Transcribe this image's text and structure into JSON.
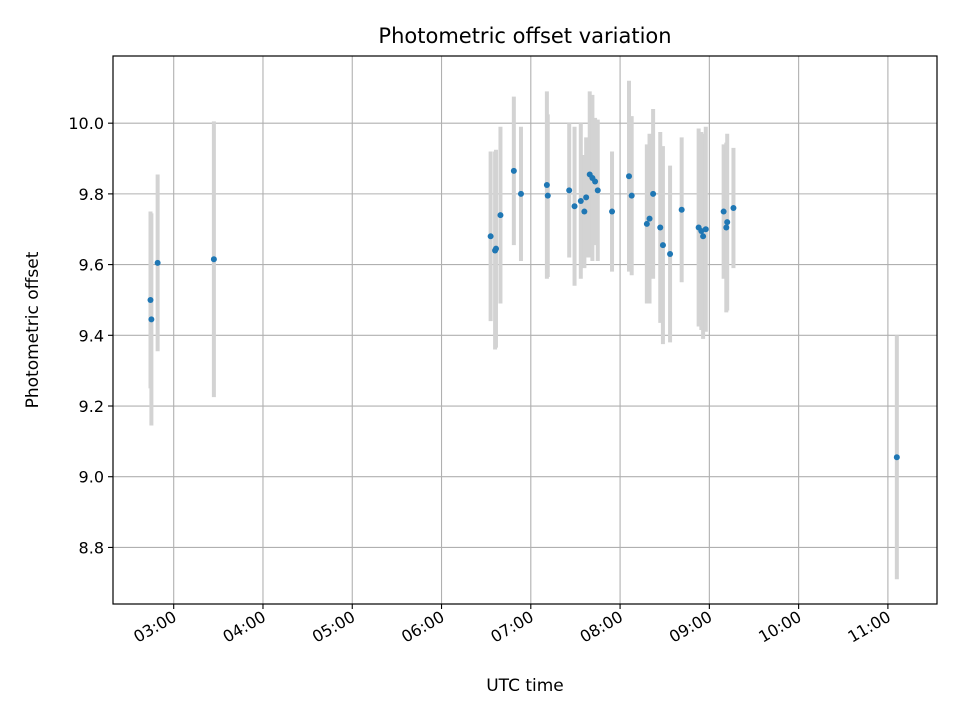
{
  "chart_data": {
    "type": "scatter",
    "title": "Photometric offset variation",
    "xlabel": "UTC time",
    "ylabel": "Photometric offset",
    "x_unit": "hours UTC",
    "xlim": [
      2.32,
      11.55
    ],
    "ylim": [
      8.64,
      10.19
    ],
    "xticks": [
      {
        "value": 3,
        "label": "03:00"
      },
      {
        "value": 4,
        "label": "04:00"
      },
      {
        "value": 5,
        "label": "05:00"
      },
      {
        "value": 6,
        "label": "06:00"
      },
      {
        "value": 7,
        "label": "07:00"
      },
      {
        "value": 8,
        "label": "08:00"
      },
      {
        "value": 9,
        "label": "09:00"
      },
      {
        "value": 10,
        "label": "10:00"
      },
      {
        "value": 11,
        "label": "11:00"
      }
    ],
    "yticks": [
      {
        "value": 8.8,
        "label": "8.8"
      },
      {
        "value": 9.0,
        "label": "9.0"
      },
      {
        "value": 9.2,
        "label": "9.2"
      },
      {
        "value": 9.4,
        "label": "9.4"
      },
      {
        "value": 9.6,
        "label": "9.6"
      },
      {
        "value": 9.8,
        "label": "9.8"
      },
      {
        "value": 10.0,
        "label": "10.0"
      }
    ],
    "grid": true,
    "colors": {
      "point": "#1f77b4",
      "errorbar": "#d3d3d3",
      "grid": "#b0b0b0"
    },
    "points": [
      {
        "x": 2.74,
        "y": 9.5,
        "yerr": 0.25
      },
      {
        "x": 2.75,
        "y": 9.445,
        "yerr": 0.3
      },
      {
        "x": 2.82,
        "y": 9.605,
        "yerr": 0.25
      },
      {
        "x": 3.45,
        "y": 9.615,
        "yerr": 0.39
      },
      {
        "x": 6.55,
        "y": 9.68,
        "yerr": 0.24
      },
      {
        "x": 6.6,
        "y": 9.64,
        "yerr": 0.28
      },
      {
        "x": 6.61,
        "y": 9.645,
        "yerr": 0.28
      },
      {
        "x": 6.66,
        "y": 9.74,
        "yerr": 0.25
      },
      {
        "x": 6.81,
        "y": 9.865,
        "yerr": 0.21
      },
      {
        "x": 6.89,
        "y": 9.8,
        "yerr": 0.19
      },
      {
        "x": 7.18,
        "y": 9.825,
        "yerr": 0.265
      },
      {
        "x": 7.19,
        "y": 9.795,
        "yerr": 0.23
      },
      {
        "x": 7.43,
        "y": 9.81,
        "yerr": 0.19
      },
      {
        "x": 7.49,
        "y": 9.765,
        "yerr": 0.225
      },
      {
        "x": 7.56,
        "y": 9.78,
        "yerr": 0.22
      },
      {
        "x": 7.6,
        "y": 9.75,
        "yerr": 0.16
      },
      {
        "x": 7.62,
        "y": 9.79,
        "yerr": 0.17
      },
      {
        "x": 7.66,
        "y": 9.855,
        "yerr": 0.235
      },
      {
        "x": 7.69,
        "y": 9.845,
        "yerr": 0.235
      },
      {
        "x": 7.72,
        "y": 9.835,
        "yerr": 0.18
      },
      {
        "x": 7.75,
        "y": 9.81,
        "yerr": 0.2
      },
      {
        "x": 7.91,
        "y": 9.75,
        "yerr": 0.17
      },
      {
        "x": 8.1,
        "y": 9.85,
        "yerr": 0.27
      },
      {
        "x": 8.13,
        "y": 9.795,
        "yerr": 0.225
      },
      {
        "x": 8.3,
        "y": 9.715,
        "yerr": 0.225
      },
      {
        "x": 8.33,
        "y": 9.73,
        "yerr": 0.24
      },
      {
        "x": 8.37,
        "y": 9.8,
        "yerr": 0.24
      },
      {
        "x": 8.45,
        "y": 9.705,
        "yerr": 0.27
      },
      {
        "x": 8.48,
        "y": 9.655,
        "yerr": 0.28
      },
      {
        "x": 8.56,
        "y": 9.63,
        "yerr": 0.25
      },
      {
        "x": 8.69,
        "y": 9.755,
        "yerr": 0.205
      },
      {
        "x": 8.88,
        "y": 9.705,
        "yerr": 0.28
      },
      {
        "x": 8.91,
        "y": 9.695,
        "yerr": 0.28
      },
      {
        "x": 8.93,
        "y": 9.68,
        "yerr": 0.29
      },
      {
        "x": 8.96,
        "y": 9.7,
        "yerr": 0.29
      },
      {
        "x": 9.16,
        "y": 9.75,
        "yerr": 0.19
      },
      {
        "x": 9.19,
        "y": 9.705,
        "yerr": 0.24
      },
      {
        "x": 9.2,
        "y": 9.72,
        "yerr": 0.25
      },
      {
        "x": 9.27,
        "y": 9.76,
        "yerr": 0.17
      },
      {
        "x": 11.1,
        "y": 9.055,
        "yerr": 0.345
      }
    ]
  }
}
